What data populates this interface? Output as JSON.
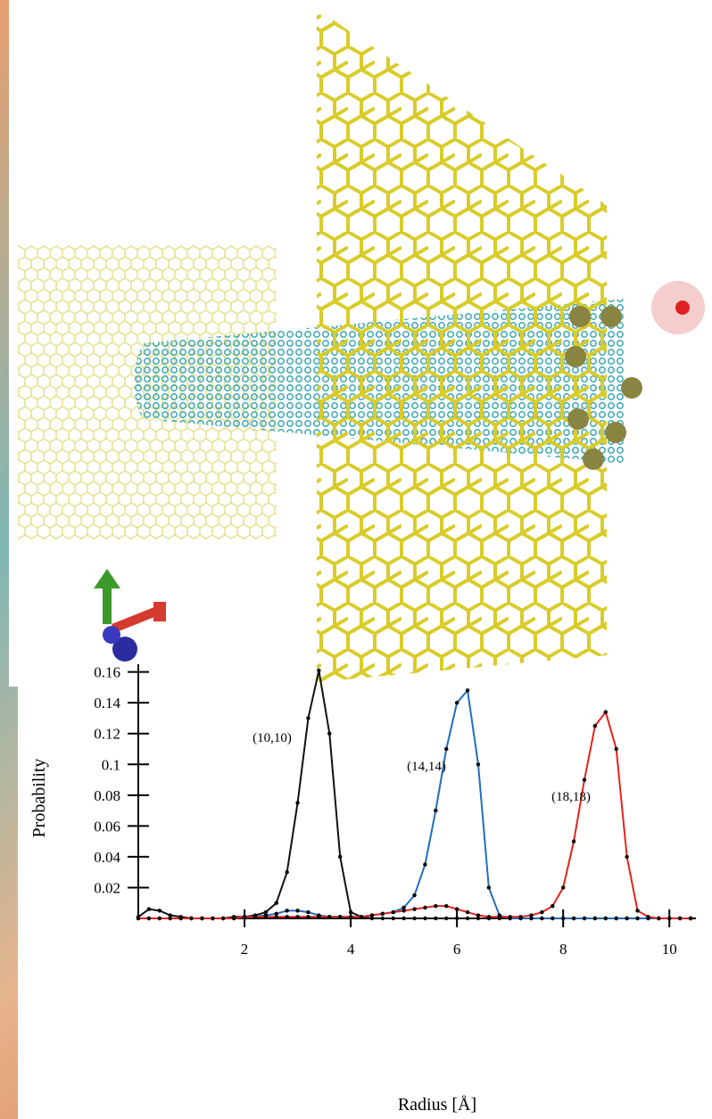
{
  "chart_data": {
    "type": "line",
    "x_label": "Radius [Å]",
    "y_label": "Probability",
    "x": [
      0,
      0.2,
      0.4,
      0.6,
      0.8,
      1.0,
      1.2,
      1.4,
      1.6,
      1.8,
      2.0,
      2.2,
      2.4,
      2.6,
      2.8,
      3.0,
      3.2,
      3.4,
      3.6,
      3.8,
      4.0,
      4.2,
      4.4,
      4.6,
      4.8,
      5.0,
      5.2,
      5.4,
      5.6,
      5.8,
      6.0,
      6.2,
      6.4,
      6.6,
      6.8,
      7.0,
      7.2,
      7.4,
      7.6,
      7.8,
      8.0,
      8.2,
      8.4,
      8.6,
      8.8,
      9.0,
      9.2,
      9.4,
      9.6,
      9.8,
      10.0,
      10.2,
      10.4
    ],
    "series": [
      {
        "name": "(10,10)",
        "color": "#111111",
        "values": [
          0.001,
          0.006,
          0.005,
          0.002,
          0.001,
          0,
          0,
          0,
          0,
          0.001,
          0.001,
          0.002,
          0.004,
          0.01,
          0.03,
          0.075,
          0.13,
          0.161,
          0.12,
          0.04,
          0.004,
          0.001,
          0,
          0,
          0,
          0,
          0,
          0,
          0,
          0,
          0,
          0,
          0,
          0,
          0,
          0,
          0,
          0,
          0,
          0,
          0,
          0,
          0,
          0,
          0,
          0,
          0,
          0,
          0,
          0,
          0,
          0,
          0
        ]
      },
      {
        "name": "(14,14)",
        "color": "#1f6fc0",
        "values": [
          0,
          0,
          0,
          0,
          0,
          0,
          0,
          0,
          0,
          0,
          0.001,
          0.001,
          0.002,
          0.003,
          0.005,
          0.005,
          0.004,
          0.002,
          0.001,
          0.001,
          0.001,
          0.001,
          0.002,
          0.003,
          0.004,
          0.007,
          0.015,
          0.035,
          0.07,
          0.11,
          0.14,
          0.148,
          0.1,
          0.02,
          0.002,
          0,
          0,
          0,
          0,
          0,
          0,
          0,
          0,
          0,
          0,
          0,
          0,
          0,
          0,
          0,
          0,
          0,
          0
        ]
      },
      {
        "name": "(18,18)",
        "color": "#e8231d",
        "values": [
          0,
          0,
          0,
          0,
          0,
          0,
          0,
          0,
          0,
          0,
          0.001,
          0.001,
          0.001,
          0.001,
          0.001,
          0.001,
          0.001,
          0.001,
          0.001,
          0.001,
          0.001,
          0.001,
          0.002,
          0.003,
          0.004,
          0.005,
          0.006,
          0.007,
          0.008,
          0.008,
          0.006,
          0.004,
          0.002,
          0.001,
          0.001,
          0.001,
          0.001,
          0.002,
          0.004,
          0.008,
          0.02,
          0.05,
          0.09,
          0.125,
          0.134,
          0.11,
          0.04,
          0.005,
          0.001,
          0,
          0,
          0,
          0
        ]
      }
    ],
    "xlim": [
      0,
      10.5
    ],
    "xticks": [
      2,
      4,
      6,
      8,
      10
    ],
    "ylim": [
      0,
      0.165
    ],
    "yticks": [
      0.02,
      0.04,
      0.06,
      0.08,
      0.1,
      0.12,
      0.14,
      0.16
    ]
  }
}
